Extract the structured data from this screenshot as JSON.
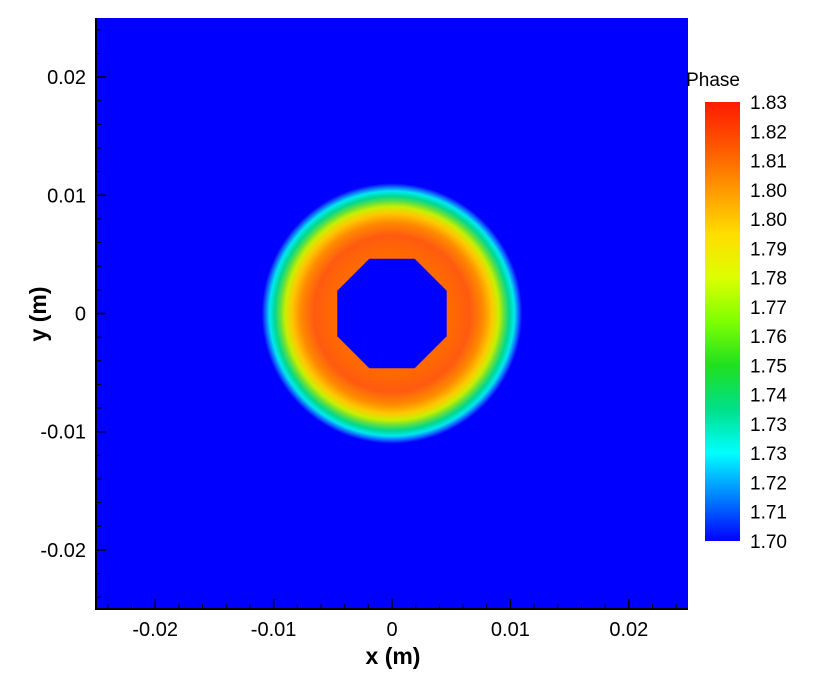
{
  "chart_data": {
    "type": "heatmap",
    "title": "",
    "xlabel": "x (m)",
    "ylabel": "y (m)",
    "xlim": [
      -0.025,
      0.025
    ],
    "ylim": [
      -0.025,
      0.025
    ],
    "x_ticks": [
      -0.02,
      -0.01,
      0,
      0.01,
      0.02
    ],
    "x_tick_labels": [
      "-0.02",
      "-0.01",
      "0",
      "0.01",
      "0.02"
    ],
    "y_ticks": [
      -0.02,
      -0.01,
      0,
      0.01,
      0.02
    ],
    "y_tick_labels": [
      "-0.02",
      "-0.01",
      "0",
      "0.01",
      "0.02"
    ],
    "grid": false,
    "colorbar": {
      "title": "Phase",
      "position": "right",
      "min": 1.7,
      "max": 1.83,
      "levels": [
        "1.83",
        "1.82",
        "1.81",
        "1.80",
        "1.80",
        "1.79",
        "1.78",
        "1.77",
        "1.76",
        "1.75",
        "1.74",
        "1.73",
        "1.73",
        "1.72",
        "1.71",
        "1.70"
      ],
      "colors": [
        "#ff1a00",
        "#ff5500",
        "#ff9900",
        "#ffdd00",
        "#ddff00",
        "#7fff00",
        "#1fe01f",
        "#00e08a",
        "#00ffff",
        "#0080ff",
        "#0000ff"
      ]
    },
    "field": {
      "description_values": "annulus centered at origin; value 1.70 background and inside inner hole",
      "center": [
        0,
        0
      ],
      "inner_hole_radius": 0.005,
      "ring_peak_radius": 0.0068,
      "outer_edge_radius": 0.011,
      "background_value": 1.7,
      "peak_value": 1.815
    }
  }
}
